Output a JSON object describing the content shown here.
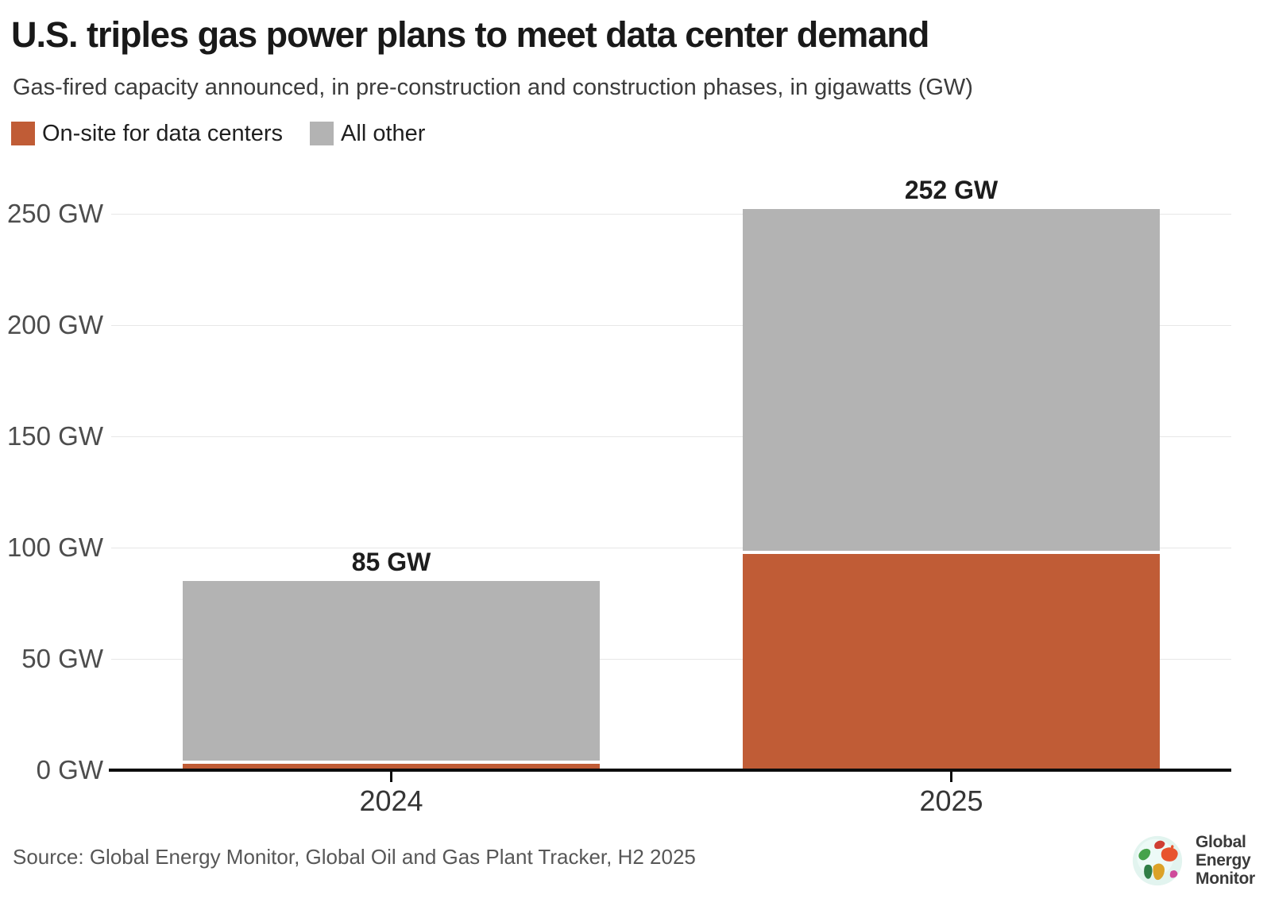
{
  "header": {
    "title": "U.S. triples gas power plans to meet data center demand",
    "subtitle": "Gas-fired capacity announced, in pre-construction and construction phases, in gigawatts (GW)"
  },
  "legend": {
    "items": [
      {
        "label": "On-site for data centers",
        "color": "#c05c36"
      },
      {
        "label": "All other",
        "color": "#b3b3b3"
      }
    ]
  },
  "chart_data": {
    "type": "bar",
    "stacked": true,
    "title": "U.S. triples gas power plans to meet data center demand",
    "subtitle": "Gas-fired capacity announced, in pre-construction and construction phases, in gigawatts (GW)",
    "categories": [
      "2024",
      "2025"
    ],
    "series": [
      {
        "name": "On-site for data centers",
        "color": "#c05c36",
        "values": [
          3,
          97
        ]
      },
      {
        "name": "All other",
        "color": "#b3b3b3",
        "values": [
          82,
          155
        ]
      }
    ],
    "totals": [
      85,
      252
    ],
    "bar_labels": [
      "85 GW",
      "252 GW"
    ],
    "ytick_values": [
      0,
      50,
      100,
      150,
      200,
      250
    ],
    "ytick_labels": [
      "0 GW",
      "50 GW",
      "100 GW",
      "150 GW",
      "200 GW",
      "250 GW"
    ],
    "ylim": [
      0,
      260
    ],
    "grid": true,
    "legend_position": "top-left",
    "colors": {
      "grid": "#e7e7e7",
      "axis": "#0d0d0d",
      "separator": "#ffffff"
    }
  },
  "footer": {
    "source": "Source: Global Energy Monitor, Global Oil and Gas Plant Tracker, H2 2025",
    "logo": {
      "line1": "Global",
      "line2": "Energy",
      "line3": "Monitor"
    }
  }
}
